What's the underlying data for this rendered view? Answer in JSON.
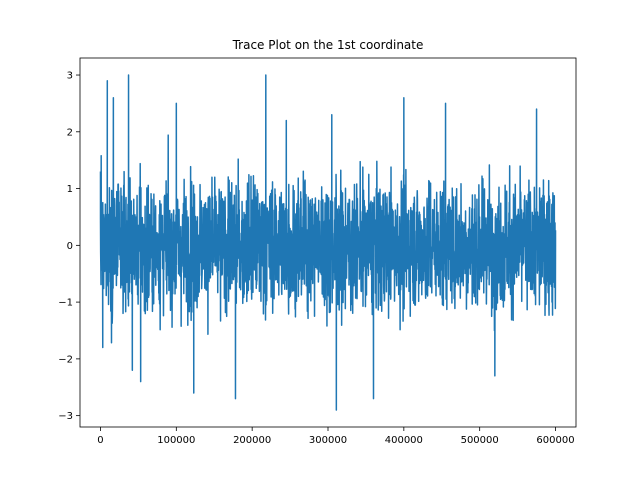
{
  "chart_data": {
    "type": "line",
    "title": "Trace Plot on the 1st coordinate",
    "xlabel": "",
    "ylabel": "",
    "xlim": [
      -27000,
      627000
    ],
    "ylim": [
      -3.2,
      3.3
    ],
    "xticks": [
      0,
      100000,
      200000,
      300000,
      400000,
      500000,
      600000
    ],
    "xtick_labels": [
      "0",
      "100000",
      "200000",
      "300000",
      "400000",
      "500000",
      "600000"
    ],
    "yticks": [
      -3,
      -2,
      -1,
      0,
      1,
      2,
      3
    ],
    "ytick_labels": [
      "−3",
      "−2",
      "−1",
      "0",
      "1",
      "2",
      "3"
    ],
    "grid": false,
    "legend": "none",
    "series_color": "#1f77b4",
    "series": [
      {
        "x_start": 0,
        "x_end": 600000,
        "note_points": "high-frequency MCMC trace; representative extrema listed",
        "extrema": [
          {
            "x": 0,
            "y": 1.3
          },
          {
            "x": 3000,
            "y": -1.8
          },
          {
            "x": 9000,
            "y": 2.9
          },
          {
            "x": 17000,
            "y": 2.6
          },
          {
            "x": 37000,
            "y": 3.0
          },
          {
            "x": 42000,
            "y": -2.2
          },
          {
            "x": 53000,
            "y": -2.4
          },
          {
            "x": 100000,
            "y": 2.5
          },
          {
            "x": 123000,
            "y": -2.6
          },
          {
            "x": 178000,
            "y": -2.7
          },
          {
            "x": 218000,
            "y": 3.0
          },
          {
            "x": 245000,
            "y": 2.2
          },
          {
            "x": 305000,
            "y": 2.3
          },
          {
            "x": 311000,
            "y": -2.9
          },
          {
            "x": 360000,
            "y": -2.7
          },
          {
            "x": 400000,
            "y": 2.6
          },
          {
            "x": 455000,
            "y": 2.5
          },
          {
            "x": 520000,
            "y": -2.3
          },
          {
            "x": 575000,
            "y": 2.4
          },
          {
            "x": 600000,
            "y": 0.0
          }
        ]
      }
    ]
  }
}
